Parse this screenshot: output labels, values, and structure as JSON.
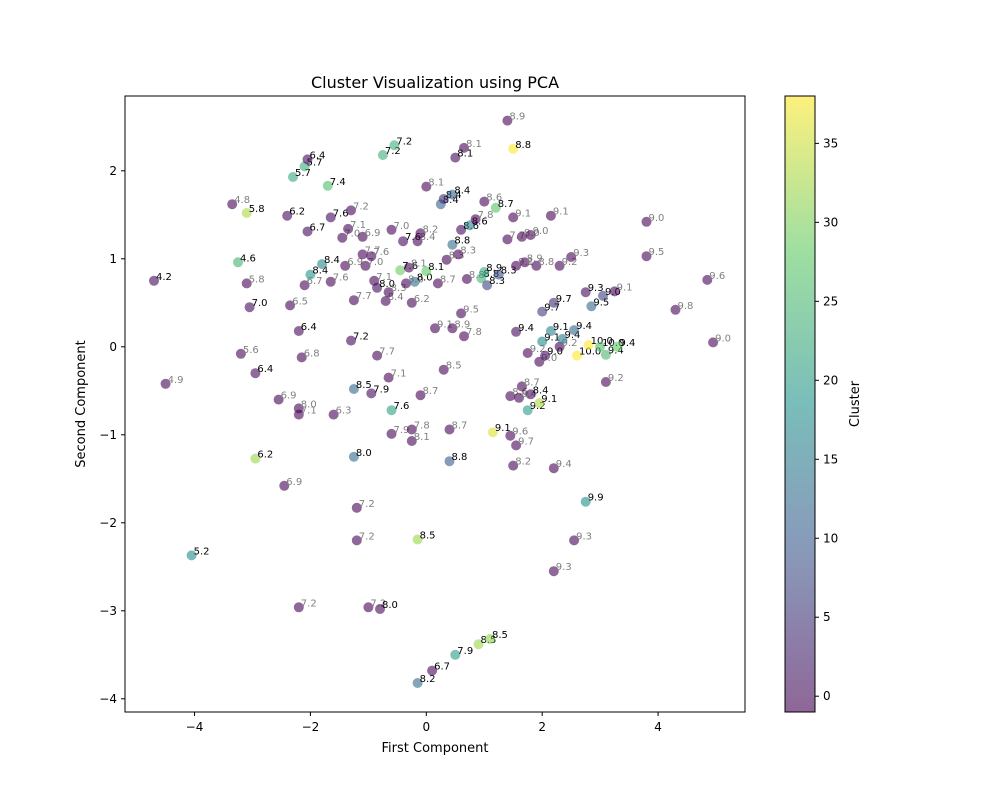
{
  "chart_data": {
    "type": "scatter",
    "title": "Cluster Visualization using PCA",
    "xlabel": "First Component",
    "ylabel": "Second Component",
    "xlim": [
      -5.2,
      5.5
    ],
    "ylim": [
      -4.15,
      2.85
    ],
    "xticks": [
      -4,
      -2,
      0,
      2,
      4
    ],
    "yticks": [
      -4,
      -3,
      -2,
      -1,
      0,
      1,
      2
    ],
    "colorbar": {
      "label": "Cluster",
      "min": -1,
      "max": 38,
      "ticks": [
        0,
        5,
        10,
        15,
        20,
        25,
        30,
        35
      ]
    },
    "colors": {
      "low": "#440154",
      "high": "#fde725",
      "marker_opacity": 0.6
    },
    "points": [
      {
        "x": -4.7,
        "y": 0.75,
        "c": 0,
        "l": "4.2"
      },
      {
        "x": -4.5,
        "y": -0.42,
        "c": -1,
        "l": "4.9"
      },
      {
        "x": -4.05,
        "y": -2.37,
        "c": 18,
        "l": "5.2"
      },
      {
        "x": -3.35,
        "y": 1.62,
        "c": -1,
        "l": "4.8"
      },
      {
        "x": -3.25,
        "y": 0.96,
        "c": 24,
        "l": "4.6"
      },
      {
        "x": -3.1,
        "y": 1.52,
        "c": 33,
        "l": "5.8"
      },
      {
        "x": -3.2,
        "y": -0.08,
        "c": -1,
        "l": "5.6"
      },
      {
        "x": -3.1,
        "y": 0.72,
        "c": -1,
        "l": "5.8"
      },
      {
        "x": -3.05,
        "y": 0.45,
        "c": 0,
        "l": "7.0"
      },
      {
        "x": -2.95,
        "y": -0.3,
        "c": 0,
        "l": "6.4"
      },
      {
        "x": -2.95,
        "y": -1.27,
        "c": 32,
        "l": "6.2"
      },
      {
        "x": -2.45,
        "y": -1.58,
        "c": -1,
        "l": "6.9"
      },
      {
        "x": -2.55,
        "y": -0.6,
        "c": -1,
        "l": "6.9"
      },
      {
        "x": -2.4,
        "y": 1.49,
        "c": 0,
        "l": "6.2"
      },
      {
        "x": -2.35,
        "y": 0.47,
        "c": -1,
        "l": "6.5"
      },
      {
        "x": -2.3,
        "y": 1.93,
        "c": 22,
        "l": "5.7"
      },
      {
        "x": -2.2,
        "y": 0.18,
        "c": 0,
        "l": "6.4"
      },
      {
        "x": -2.15,
        "y": -0.12,
        "c": -1,
        "l": "6.8"
      },
      {
        "x": -2.2,
        "y": -0.7,
        "c": -1,
        "l": "8.0"
      },
      {
        "x": -2.2,
        "y": -0.77,
        "c": -1,
        "l": "7.1"
      },
      {
        "x": -2.2,
        "y": -2.96,
        "c": -1,
        "l": "7.2"
      },
      {
        "x": -2.1,
        "y": 2.05,
        "c": 23,
        "l": "5.7"
      },
      {
        "x": -2.05,
        "y": 2.13,
        "c": 0,
        "l": "6.4"
      },
      {
        "x": -2.05,
        "y": 1.31,
        "c": 0,
        "l": "6.7"
      },
      {
        "x": -2.1,
        "y": 0.7,
        "c": -1,
        "l": "6.7"
      },
      {
        "x": -2.0,
        "y": 0.82,
        "c": 19,
        "l": "8.4"
      },
      {
        "x": -1.8,
        "y": 0.94,
        "c": 17,
        "l": "8.4"
      },
      {
        "x": -1.7,
        "y": 1.83,
        "c": 26,
        "l": "7.4"
      },
      {
        "x": -1.65,
        "y": 1.47,
        "c": 0,
        "l": "7.6"
      },
      {
        "x": -1.65,
        "y": 0.74,
        "c": -1,
        "l": "7.6"
      },
      {
        "x": -1.6,
        "y": -0.77,
        "c": -1,
        "l": "6.3"
      },
      {
        "x": -1.45,
        "y": 1.24,
        "c": -1,
        "l": "7.0"
      },
      {
        "x": -1.4,
        "y": 0.92,
        "c": -1,
        "l": "6.9"
      },
      {
        "x": -1.35,
        "y": 1.34,
        "c": -1,
        "l": "7.1"
      },
      {
        "x": -1.3,
        "y": 1.55,
        "c": -1,
        "l": "7.2"
      },
      {
        "x": -1.25,
        "y": 0.53,
        "c": -1,
        "l": "7.7"
      },
      {
        "x": -1.25,
        "y": -0.48,
        "c": 12,
        "l": "8.5"
      },
      {
        "x": -1.25,
        "y": -1.25,
        "c": 13,
        "l": "8.0"
      },
      {
        "x": -1.2,
        "y": -1.83,
        "c": -1,
        "l": "7.2"
      },
      {
        "x": -1.2,
        "y": -2.2,
        "c": -1,
        "l": "7.2"
      },
      {
        "x": -1.3,
        "y": 0.07,
        "c": 0,
        "l": "7.2"
      },
      {
        "x": -1.1,
        "y": 1.25,
        "c": -1,
        "l": "6.9"
      },
      {
        "x": -1.1,
        "y": 1.05,
        "c": -1,
        "l": "7.7"
      },
      {
        "x": -1.05,
        "y": 0.92,
        "c": -1,
        "l": "7.0"
      },
      {
        "x": -1.0,
        "y": -2.96,
        "c": -1,
        "l": "7.2"
      },
      {
        "x": -0.95,
        "y": 1.03,
        "c": -1,
        "l": "7.6"
      },
      {
        "x": -0.95,
        "y": -0.53,
        "c": 0,
        "l": "7.9"
      },
      {
        "x": -0.9,
        "y": 0.75,
        "c": -1,
        "l": "7.1"
      },
      {
        "x": -0.85,
        "y": -0.1,
        "c": -1,
        "l": "7.7"
      },
      {
        "x": -0.85,
        "y": 0.67,
        "c": 0,
        "l": "8.0"
      },
      {
        "x": -0.8,
        "y": -2.98,
        "c": 0,
        "l": "8.0"
      },
      {
        "x": -0.75,
        "y": 2.18,
        "c": 23,
        "l": "7.2"
      },
      {
        "x": -0.7,
        "y": 0.52,
        "c": -1,
        "l": "8.4"
      },
      {
        "x": -0.65,
        "y": 0.62,
        "c": -1,
        "l": "8.3"
      },
      {
        "x": -0.65,
        "y": -0.35,
        "c": -1,
        "l": "7.1"
      },
      {
        "x": -0.6,
        "y": 1.33,
        "c": -1,
        "l": "7.0"
      },
      {
        "x": -0.6,
        "y": -0.72,
        "c": 21,
        "l": "7.6"
      },
      {
        "x": -0.6,
        "y": -0.99,
        "c": -1,
        "l": "7.9"
      },
      {
        "x": -0.55,
        "y": 2.29,
        "c": 23,
        "l": "7.2"
      },
      {
        "x": -0.45,
        "y": 0.87,
        "c": 29,
        "l": "7.6"
      },
      {
        "x": -0.4,
        "y": 1.2,
        "c": 0,
        "l": "7.6"
      },
      {
        "x": -0.35,
        "y": 0.72,
        "c": -1,
        "l": "8.0"
      },
      {
        "x": -0.3,
        "y": 0.9,
        "c": -1,
        "l": "8.1"
      },
      {
        "x": -0.25,
        "y": 0.5,
        "c": -1,
        "l": "6.2"
      },
      {
        "x": -0.25,
        "y": -0.94,
        "c": -1,
        "l": "7.8"
      },
      {
        "x": -0.25,
        "y": -1.07,
        "c": -1,
        "l": "8.1"
      },
      {
        "x": -0.2,
        "y": 0.74,
        "c": 13,
        "l": "8.0"
      },
      {
        "x": -0.15,
        "y": 1.2,
        "c": -1,
        "l": "8.4"
      },
      {
        "x": -0.15,
        "y": -2.19,
        "c": 32,
        "l": "8.5"
      },
      {
        "x": -0.15,
        "y": -3.82,
        "c": 13,
        "l": "8.2"
      },
      {
        "x": -0.1,
        "y": -0.55,
        "c": -1,
        "l": "8.7"
      },
      {
        "x": -0.1,
        "y": 1.29,
        "c": -1,
        "l": "8.2"
      },
      {
        "x": 0.0,
        "y": 1.82,
        "c": -1,
        "l": "8.1"
      },
      {
        "x": 0.0,
        "y": 0.86,
        "c": 28,
        "l": "8.1"
      },
      {
        "x": 0.1,
        "y": -3.68,
        "c": 0,
        "l": "6.7"
      },
      {
        "x": 0.15,
        "y": 0.21,
        "c": -1,
        "l": "9.1"
      },
      {
        "x": 0.2,
        "y": 0.72,
        "c": -1,
        "l": "8.7"
      },
      {
        "x": 0.25,
        "y": 1.62,
        "c": 11,
        "l": "8.4"
      },
      {
        "x": 0.3,
        "y": 1.68,
        "c": 4,
        "l": "8.4"
      },
      {
        "x": 0.3,
        "y": -0.26,
        "c": -1,
        "l": "8.5"
      },
      {
        "x": 0.35,
        "y": 0.99,
        "c": -1,
        "l": "8.3"
      },
      {
        "x": 0.4,
        "y": -1.3,
        "c": 10,
        "l": "8.8"
      },
      {
        "x": 0.4,
        "y": -0.94,
        "c": -1,
        "l": "8.7"
      },
      {
        "x": 0.45,
        "y": 1.73,
        "c": 11,
        "l": "8.4"
      },
      {
        "x": 0.45,
        "y": 1.16,
        "c": 13,
        "l": "8.8"
      },
      {
        "x": 0.45,
        "y": 0.21,
        "c": -1,
        "l": "8.9"
      },
      {
        "x": 0.5,
        "y": 2.15,
        "c": 0,
        "l": "8.1"
      },
      {
        "x": 0.5,
        "y": -3.5,
        "c": 20,
        "l": "7.9"
      },
      {
        "x": 0.55,
        "y": 1.05,
        "c": -1,
        "l": "8.3"
      },
      {
        "x": 0.6,
        "y": 0.38,
        "c": -1,
        "l": "9.5"
      },
      {
        "x": 0.6,
        "y": 1.33,
        "c": 0,
        "l": "8.6"
      },
      {
        "x": 0.65,
        "y": 2.26,
        "c": -1,
        "l": "8.1"
      },
      {
        "x": 0.65,
        "y": 0.12,
        "c": -1,
        "l": "7.8"
      },
      {
        "x": 0.7,
        "y": 0.77,
        "c": -1,
        "l": "8.8"
      },
      {
        "x": 0.75,
        "y": 1.38,
        "c": 16,
        "l": "8.6"
      },
      {
        "x": 0.85,
        "y": 1.45,
        "c": -1,
        "l": "7.8"
      },
      {
        "x": 0.9,
        "y": -3.38,
        "c": 32,
        "l": "8.5"
      },
      {
        "x": 0.95,
        "y": 0.78,
        "c": 24,
        "l": "8.8"
      },
      {
        "x": 1.0,
        "y": 0.85,
        "c": 22,
        "l": "8.9"
      },
      {
        "x": 1.0,
        "y": 1.65,
        "c": -1,
        "l": "8.6"
      },
      {
        "x": 1.05,
        "y": 0.7,
        "c": 7,
        "l": "8.3"
      },
      {
        "x": 1.1,
        "y": -3.32,
        "c": 31,
        "l": "8.5"
      },
      {
        "x": 1.15,
        "y": -0.97,
        "c": 36,
        "l": "9.1"
      },
      {
        "x": 1.2,
        "y": 1.58,
        "c": 27,
        "l": "8.7"
      },
      {
        "x": 1.25,
        "y": 0.82,
        "c": 8,
        "l": "8.3"
      },
      {
        "x": 1.4,
        "y": 2.57,
        "c": -1,
        "l": "8.9"
      },
      {
        "x": 1.4,
        "y": 1.22,
        "c": -1,
        "l": "7.7"
      },
      {
        "x": 1.45,
        "y": -0.56,
        "c": -1,
        "l": "8.6"
      },
      {
        "x": 1.45,
        "y": -1.01,
        "c": -1,
        "l": "9.6"
      },
      {
        "x": 1.5,
        "y": -1.35,
        "c": -1,
        "l": "8.2"
      },
      {
        "x": 1.5,
        "y": 1.47,
        "c": -1,
        "l": "9.1"
      },
      {
        "x": 1.5,
        "y": 2.25,
        "c": 38,
        "l": "8.8"
      },
      {
        "x": 1.55,
        "y": 0.92,
        "c": -1,
        "l": "9.1"
      },
      {
        "x": 1.55,
        "y": 0.17,
        "c": 0,
        "l": "9.4"
      },
      {
        "x": 1.55,
        "y": -1.12,
        "c": -1,
        "l": "9.7"
      },
      {
        "x": 1.6,
        "y": -0.58,
        "c": -1,
        "l": "8.4"
      },
      {
        "x": 1.65,
        "y": -0.45,
        "c": -1,
        "l": "8.7"
      },
      {
        "x": 1.65,
        "y": 1.25,
        "c": -1,
        "l": "8.0"
      },
      {
        "x": 1.7,
        "y": 0.96,
        "c": -1,
        "l": "8.9"
      },
      {
        "x": 1.75,
        "y": -0.07,
        "c": -1,
        "l": "9.2"
      },
      {
        "x": 1.75,
        "y": -0.72,
        "c": 20,
        "l": "9.2"
      },
      {
        "x": 1.8,
        "y": 1.27,
        "c": -1,
        "l": "9.0"
      },
      {
        "x": 1.8,
        "y": -0.54,
        "c": 0,
        "l": "8.4"
      },
      {
        "x": 1.9,
        "y": 0.92,
        "c": -1,
        "l": "8.8"
      },
      {
        "x": 1.95,
        "y": -0.64,
        "c": 33,
        "l": "9.1"
      },
      {
        "x": 1.95,
        "y": -0.17,
        "c": -1,
        "l": "9.0"
      },
      {
        "x": 2.0,
        "y": 0.06,
        "c": 17,
        "l": "9.1"
      },
      {
        "x": 2.0,
        "y": 0.4,
        "c": 6,
        "l": "9.7"
      },
      {
        "x": 2.05,
        "y": -0.1,
        "c": 0,
        "l": "9.0"
      },
      {
        "x": 2.15,
        "y": 1.49,
        "c": -1,
        "l": "9.1"
      },
      {
        "x": 2.15,
        "y": 0.18,
        "c": 16,
        "l": "9.1"
      },
      {
        "x": 2.2,
        "y": -1.38,
        "c": -1,
        "l": "9.4"
      },
      {
        "x": 2.2,
        "y": -2.55,
        "c": -1,
        "l": "9.3"
      },
      {
        "x": 2.2,
        "y": 0.5,
        "c": 4,
        "l": "9.7"
      },
      {
        "x": 2.3,
        "y": 0.0,
        "c": -1,
        "l": "9.2"
      },
      {
        "x": 2.3,
        "y": 0.92,
        "c": -1,
        "l": "9.2"
      },
      {
        "x": 2.35,
        "y": 0.09,
        "c": 15,
        "l": "9.4"
      },
      {
        "x": 2.5,
        "y": 1.02,
        "c": -1,
        "l": "9.3"
      },
      {
        "x": 2.55,
        "y": 0.19,
        "c": 12,
        "l": "9.4"
      },
      {
        "x": 2.55,
        "y": -2.2,
        "c": -1,
        "l": "9.3"
      },
      {
        "x": 2.6,
        "y": -0.1,
        "c": 38,
        "l": "10.0"
      },
      {
        "x": 2.75,
        "y": 0.62,
        "c": 0,
        "l": "9.3"
      },
      {
        "x": 2.75,
        "y": -1.76,
        "c": 18,
        "l": "9.9"
      },
      {
        "x": 2.8,
        "y": 0.02,
        "c": 38,
        "l": "10.0"
      },
      {
        "x": 2.85,
        "y": 0.46,
        "c": 12,
        "l": "9.5"
      },
      {
        "x": 3.0,
        "y": 0.0,
        "c": 26,
        "l": "10.0"
      },
      {
        "x": 3.05,
        "y": 0.58,
        "c": 7,
        "l": "9.0"
      },
      {
        "x": 3.1,
        "y": -0.09,
        "c": 25,
        "l": "9.4"
      },
      {
        "x": 3.1,
        "y": -0.4,
        "c": -1,
        "l": "9.2"
      },
      {
        "x": 3.25,
        "y": 0.63,
        "c": -1,
        "l": "9.1"
      },
      {
        "x": 3.3,
        "y": 0.0,
        "c": 28,
        "l": "9.4"
      },
      {
        "x": 3.8,
        "y": 1.42,
        "c": -1,
        "l": "9.0"
      },
      {
        "x": 3.8,
        "y": 1.03,
        "c": -1,
        "l": "9.5"
      },
      {
        "x": 4.3,
        "y": 0.42,
        "c": -1,
        "l": "9.8"
      },
      {
        "x": 4.85,
        "y": 0.76,
        "c": -1,
        "l": "9.6"
      },
      {
        "x": 4.95,
        "y": 0.05,
        "c": -1,
        "l": "9.0"
      }
    ]
  }
}
